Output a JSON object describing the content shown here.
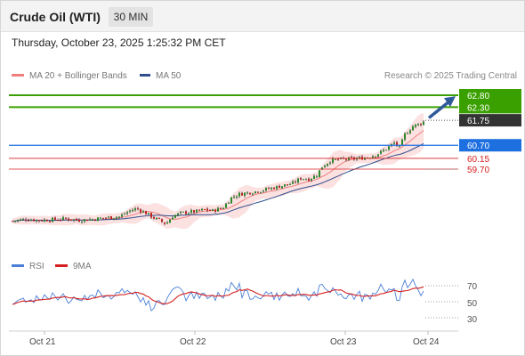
{
  "header": {
    "title": "Crude Oil (WTI)",
    "timeframe": "30 MIN",
    "datetime": "Thursday, October 23, 2025 1:25:32 PM CET"
  },
  "legend": {
    "ma20_label": "MA 20 + Bollinger Bands",
    "ma20_color": "#f08080",
    "ma50_label": "MA 50",
    "ma50_color": "#2f4f8f",
    "source": "Research © 2025 Trading Central"
  },
  "colors": {
    "resistance": "#3aa000",
    "pivot": "#1e6fe0",
    "support": "#d62020",
    "current": "#333333",
    "arrow": "#2e5a99",
    "candle_up": "#2a8a2a",
    "candle_down": "#c02020",
    "rsi": "#4a7fd6",
    "rsi_ma": "#d62020"
  },
  "levels": {
    "r2": "62.80",
    "r1": "62.30",
    "last": "61.75",
    "pivot": "60.70",
    "s1": "60.15",
    "s2": "59.70"
  },
  "rsi_panel": {
    "rsi_label": "RSI",
    "ma_label": "9MA",
    "ticks": [
      "70",
      "50",
      "30"
    ]
  },
  "x_axis": {
    "labels": [
      "Oct 21",
      "Oct 22",
      "Oct 23",
      "Oct 24"
    ]
  },
  "chart_data": {
    "type": "line",
    "title": "Crude Oil (WTI)",
    "x_labels": [
      "Oct 21",
      "Oct 22",
      "Oct 23",
      "Oct 24"
    ],
    "ylim": [
      56.9,
      63.1
    ],
    "price_path": [
      [
        0,
        57.52
      ],
      [
        10,
        57.6
      ],
      [
        20,
        57.55
      ],
      [
        30,
        57.58
      ],
      [
        40,
        57.62
      ],
      [
        50,
        57.55
      ],
      [
        60,
        57.6
      ],
      [
        70,
        57.66
      ],
      [
        80,
        57.7
      ],
      [
        88,
        57.95
      ],
      [
        93,
        58.05
      ],
      [
        100,
        57.85
      ],
      [
        106,
        57.65
      ],
      [
        110,
        57.55
      ],
      [
        115,
        57.4
      ],
      [
        120,
        57.72
      ],
      [
        126,
        57.85
      ],
      [
        132,
        57.9
      ],
      [
        138,
        57.92
      ],
      [
        144,
        58.0
      ],
      [
        150,
        57.95
      ],
      [
        158,
        58.1
      ],
      [
        164,
        58.5
      ],
      [
        170,
        58.65
      ],
      [
        178,
        58.72
      ],
      [
        186,
        58.8
      ],
      [
        194,
        58.9
      ],
      [
        202,
        59.0
      ],
      [
        210,
        59.1
      ],
      [
        216,
        59.32
      ],
      [
        222,
        59.28
      ],
      [
        228,
        59.45
      ],
      [
        232,
        59.8
      ],
      [
        238,
        60.05
      ],
      [
        244,
        60.1
      ],
      [
        252,
        60.12
      ],
      [
        260,
        60.15
      ],
      [
        268,
        60.22
      ],
      [
        274,
        60.35
      ],
      [
        280,
        60.55
      ],
      [
        286,
        60.8
      ],
      [
        290,
        60.6
      ],
      [
        294,
        61.15
      ],
      [
        300,
        61.5
      ],
      [
        306,
        61.62
      ],
      [
        310,
        61.75
      ]
    ],
    "series": [
      {
        "name": "MA 20 + Bollinger Bands"
      },
      {
        "name": "MA 50"
      }
    ],
    "rsi_ylim": [
      20,
      90
    ]
  }
}
